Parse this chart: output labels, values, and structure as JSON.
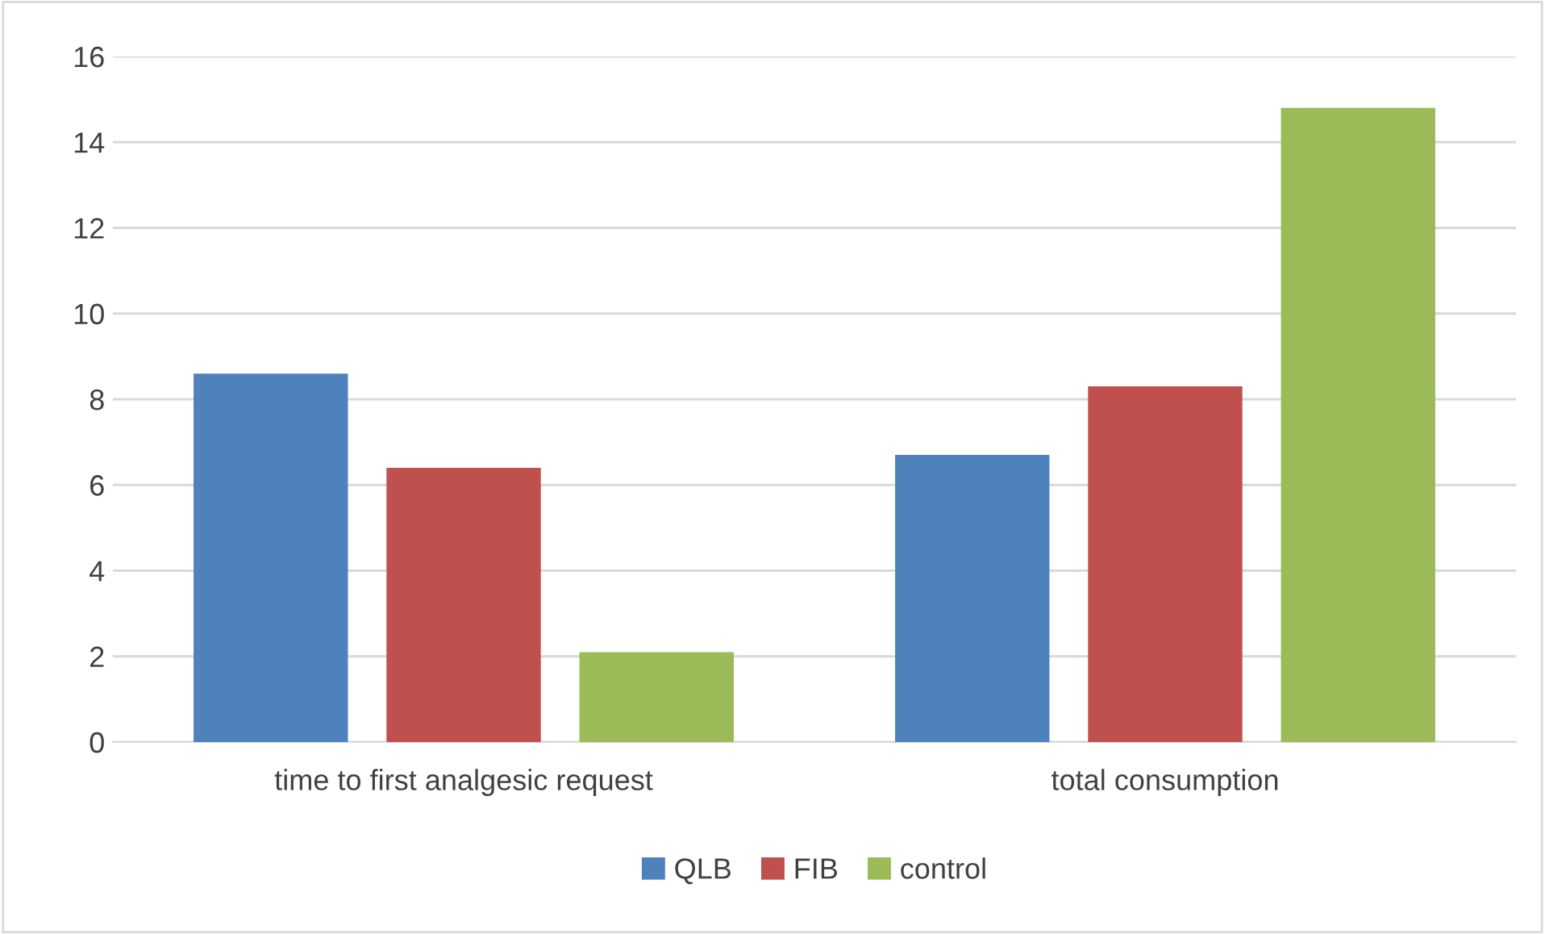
{
  "chart_data": {
    "type": "bar",
    "categories": [
      "time to first analgesic request",
      "total consumption"
    ],
    "series": [
      {
        "name": "QLB",
        "color": "#4f81bd",
        "values": [
          8.6,
          6.7
        ]
      },
      {
        "name": "FIB",
        "color": "#c0504d",
        "values": [
          6.4,
          8.3
        ]
      },
      {
        "name": "control",
        "color": "#9bbb59",
        "values": [
          2.1,
          14.8
        ]
      }
    ],
    "ylim": [
      0,
      16
    ],
    "yticks": [
      0,
      2,
      4,
      6,
      8,
      10,
      12,
      14,
      16
    ],
    "grid": "y",
    "legend": "bottom"
  }
}
